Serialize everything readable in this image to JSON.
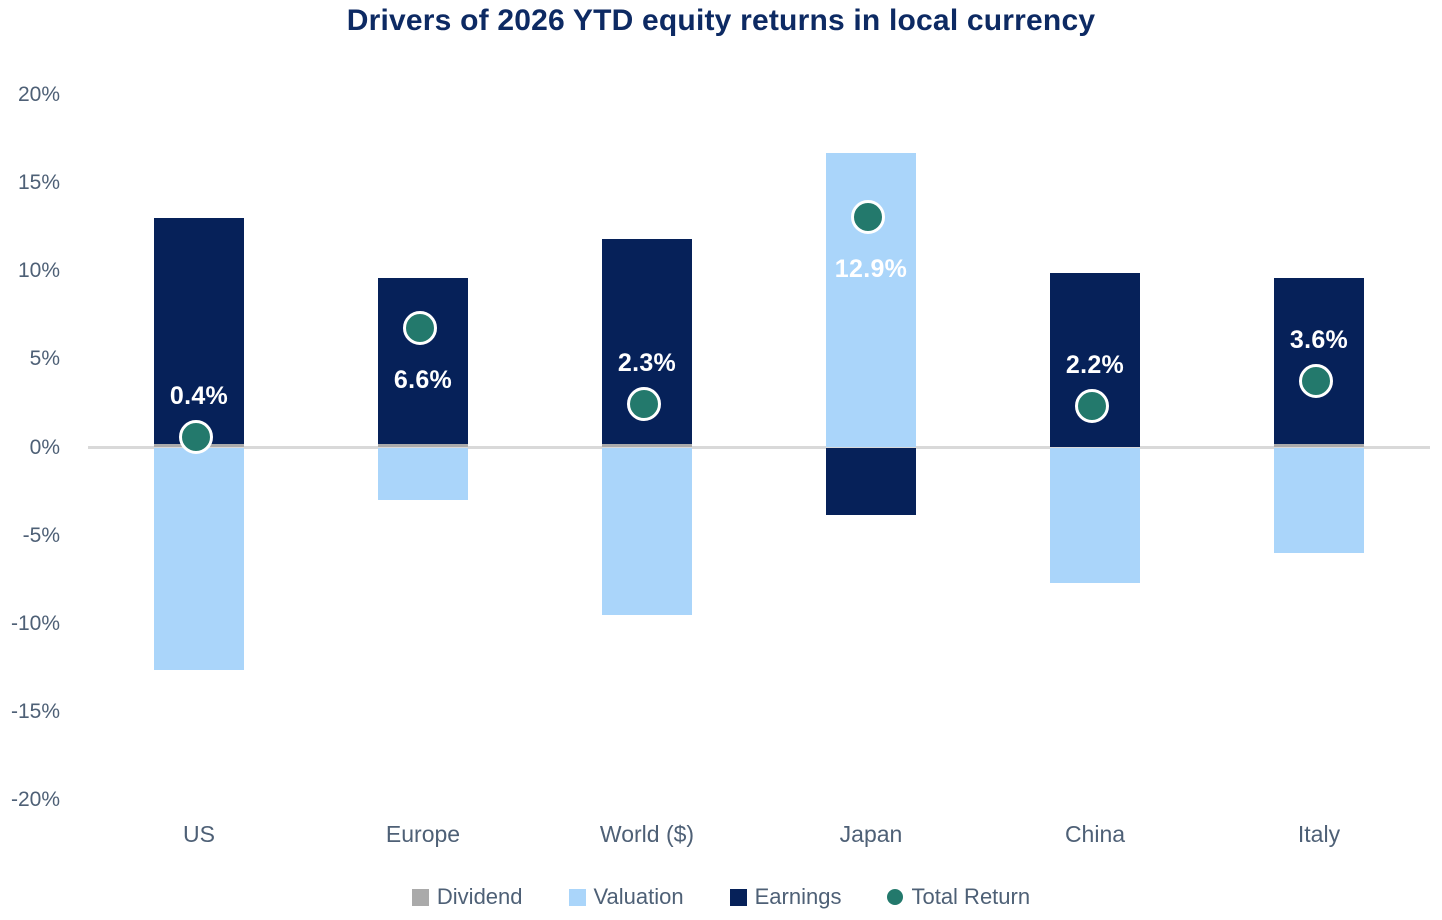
{
  "title": "Drivers of 2026 YTD equity returns in local currency",
  "chart_data": {
    "type": "bar",
    "stacked": true,
    "title": "Drivers of 2026 YTD equity returns in local currency",
    "categories": [
      "US",
      "Europe",
      "World ($)",
      "Japan",
      "China",
      "Italy"
    ],
    "series": [
      {
        "name": "Dividend",
        "color": "#aaaaaa",
        "values": [
          0.2,
          0.2,
          0.2,
          0.0,
          0.0,
          0.2
        ]
      },
      {
        "name": "Valuation",
        "color": "#aad5fa",
        "values": [
          -12.6,
          -3.0,
          -9.5,
          16.7,
          -7.7,
          -6.0
        ]
      },
      {
        "name": "Earnings",
        "color": "#062159",
        "values": [
          12.8,
          9.4,
          11.6,
          -3.8,
          9.9,
          9.4
        ]
      }
    ],
    "markers": {
      "name": "Total Return",
      "color": "#23796c",
      "values": [
        0.4,
        6.6,
        2.3,
        12.9,
        2.2,
        3.6
      ],
      "labels": [
        "0.4%",
        "6.6%",
        "2.3%",
        "12.9%",
        "2.2%",
        "3.6%"
      ],
      "label_side": [
        "above",
        "below",
        "above",
        "below",
        "above",
        "above"
      ]
    },
    "y_axis": {
      "range": [
        -20,
        20
      ],
      "ticks": [
        {
          "value": 20,
          "label": "20%"
        },
        {
          "value": 15,
          "label": "15%"
        },
        {
          "value": 10,
          "label": "10%"
        },
        {
          "value": 5,
          "label": "5%"
        },
        {
          "value": 0,
          "label": "0%"
        },
        {
          "value": -5,
          "label": "-5%"
        },
        {
          "value": -10,
          "label": "-10%"
        },
        {
          "value": -15,
          "label": "-15%"
        },
        {
          "value": -20,
          "label": "-20%"
        }
      ]
    },
    "grid": "zero-line-only",
    "legend_position": "bottom",
    "legend": [
      {
        "label": "Dividend",
        "swatch": "square",
        "color": "#aaaaaa"
      },
      {
        "label": "Valuation",
        "swatch": "square",
        "color": "#aad5fa"
      },
      {
        "label": "Earnings",
        "swatch": "square",
        "color": "#062159"
      },
      {
        "label": "Total Return",
        "swatch": "circle",
        "color": "#23796c"
      }
    ]
  },
  "colors": {
    "background": "#ffffff",
    "title": "#0d2a63",
    "axis_text": "#4e6076",
    "zero_line": "#d9d9d9",
    "value_label": "#ffffff"
  }
}
